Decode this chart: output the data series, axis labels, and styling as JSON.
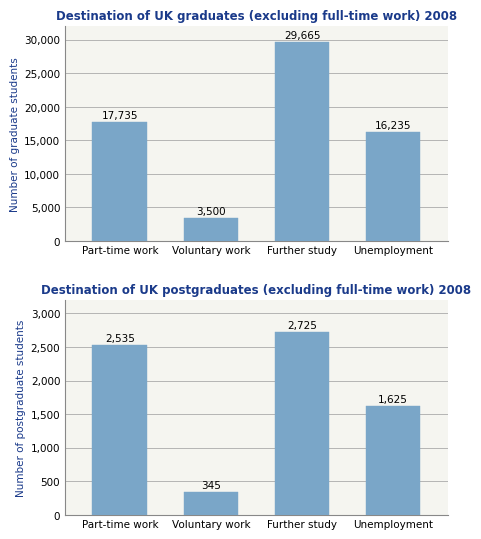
{
  "grad_title": "Destination of UK graduates (excluding full-time work) 2008",
  "postgrad_title": "Destination of UK postgraduates (excluding full-time work) 2008",
  "categories": [
    "Part-time work",
    "Voluntary work",
    "Further study",
    "Unemployment"
  ],
  "grad_values": [
    17735,
    3500,
    29665,
    16235
  ],
  "grad_labels": [
    "17,735",
    "3,500",
    "29,665",
    "16,235"
  ],
  "postgrad_values": [
    2535,
    345,
    2725,
    1625
  ],
  "postgrad_labels": [
    "2,535",
    "345",
    "2,725",
    "1,625"
  ],
  "bar_color": "#7aa6c8",
  "grad_ylabel": "Number of graduate students",
  "postgrad_ylabel": "Number of postgraduate students",
  "grad_ylim": [
    0,
    32000
  ],
  "grad_yticks": [
    0,
    5000,
    10000,
    15000,
    20000,
    25000,
    30000
  ],
  "postgrad_ylim": [
    0,
    3200
  ],
  "postgrad_yticks": [
    0,
    500,
    1000,
    1500,
    2000,
    2500,
    3000
  ],
  "title_color": "#1a3a8a",
  "ylabel_color": "#1a3a8a",
  "title_fontsize": 8.5,
  "label_fontsize": 7.5,
  "tick_fontsize": 7.5,
  "bar_width": 0.6,
  "bg_color": "#f5f5f0",
  "grid_color": "#aaaaaa",
  "value_label_fontsize": 7.5
}
